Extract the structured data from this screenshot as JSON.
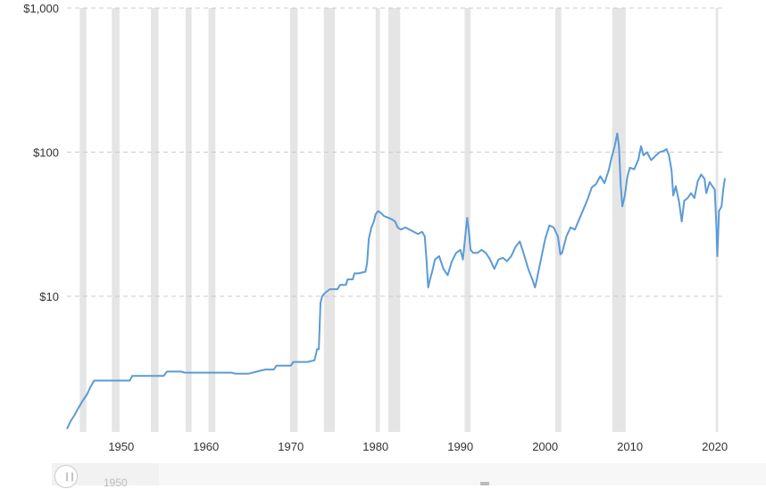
{
  "chart_data": {
    "type": "line",
    "title": "",
    "xlabel": "",
    "ylabel": "",
    "y_scale": "log",
    "ylim": [
      1.2,
      1000
    ],
    "xlim": [
      1943.6,
      2021.2
    ],
    "y_ticks": [
      {
        "value": 10,
        "label": "$10"
      },
      {
        "value": 100,
        "label": "$100"
      },
      {
        "value": 1000,
        "label": "$1,000"
      }
    ],
    "x_ticks": [
      1950,
      1960,
      1970,
      1980,
      1990,
      2000,
      2010,
      2020
    ],
    "grid": true,
    "series_color": "#5b9bd5",
    "recession_color": "#e5e5e5",
    "recessions": [
      [
        1945.1,
        1945.9
      ],
      [
        1948.9,
        1949.8
      ],
      [
        1953.5,
        1954.4
      ],
      [
        1957.6,
        1958.3
      ],
      [
        1960.3,
        1961.1
      ],
      [
        1969.9,
        1970.8
      ],
      [
        1973.9,
        1975.2
      ],
      [
        1980.0,
        1980.5
      ],
      [
        1981.5,
        1982.9
      ],
      [
        1990.5,
        1991.2
      ],
      [
        2001.2,
        2001.9
      ],
      [
        2007.9,
        2009.5
      ],
      [
        2020.1,
        2020.4
      ]
    ],
    "series": [
      {
        "values": [
          [
            1943.6,
            1.2
          ],
          [
            1944.0,
            1.35
          ],
          [
            1944.5,
            1.5
          ],
          [
            1945.0,
            1.7
          ],
          [
            1945.5,
            1.9
          ],
          [
            1946.0,
            2.1
          ],
          [
            1946.3,
            2.3
          ],
          [
            1946.8,
            2.6
          ],
          [
            1948.0,
            2.6
          ],
          [
            1950.0,
            2.6
          ],
          [
            1951.0,
            2.6
          ],
          [
            1951.3,
            2.8
          ],
          [
            1954.0,
            2.8
          ],
          [
            1955.0,
            2.8
          ],
          [
            1955.4,
            3.0
          ],
          [
            1957.0,
            3.0
          ],
          [
            1957.5,
            2.95
          ],
          [
            1960.0,
            2.95
          ],
          [
            1963.0,
            2.95
          ],
          [
            1963.5,
            2.9
          ],
          [
            1965.0,
            2.9
          ],
          [
            1966.0,
            3.0
          ],
          [
            1967.0,
            3.1
          ],
          [
            1968.0,
            3.1
          ],
          [
            1968.3,
            3.3
          ],
          [
            1970.0,
            3.3
          ],
          [
            1970.3,
            3.5
          ],
          [
            1971.0,
            3.5
          ],
          [
            1972.0,
            3.5
          ],
          [
            1972.8,
            3.6
          ],
          [
            1973.1,
            4.3
          ],
          [
            1973.3,
            4.3
          ],
          [
            1973.5,
            9.0
          ],
          [
            1973.7,
            10.0
          ],
          [
            1974.0,
            10.5
          ],
          [
            1974.6,
            11.2
          ],
          [
            1975.5,
            11.2
          ],
          [
            1975.8,
            12.0
          ],
          [
            1976.5,
            12.0
          ],
          [
            1976.7,
            13.1
          ],
          [
            1977.3,
            13.1
          ],
          [
            1977.5,
            14.4
          ],
          [
            1978.0,
            14.4
          ],
          [
            1978.8,
            14.8
          ],
          [
            1979.0,
            17.0
          ],
          [
            1979.2,
            25.0
          ],
          [
            1979.5,
            30.0
          ],
          [
            1979.8,
            33.0
          ],
          [
            1980.0,
            37.0
          ],
          [
            1980.3,
            39.0
          ],
          [
            1980.6,
            38.0
          ],
          [
            1981.0,
            36.0
          ],
          [
            1981.5,
            35.0
          ],
          [
            1982.0,
            34.0
          ],
          [
            1982.3,
            33.0
          ],
          [
            1982.6,
            30.0
          ],
          [
            1983.0,
            29.0
          ],
          [
            1983.5,
            30.0
          ],
          [
            1984.0,
            29.0
          ],
          [
            1984.5,
            28.0
          ],
          [
            1985.0,
            27.0
          ],
          [
            1985.5,
            28.0
          ],
          [
            1985.8,
            26.0
          ],
          [
            1986.0,
            18.0
          ],
          [
            1986.2,
            11.5
          ],
          [
            1986.4,
            13.0
          ],
          [
            1986.7,
            15.0
          ],
          [
            1987.0,
            18.0
          ],
          [
            1987.5,
            19.0
          ],
          [
            1988.0,
            15.5
          ],
          [
            1988.5,
            14.0
          ],
          [
            1989.0,
            17.5
          ],
          [
            1989.5,
            20.0
          ],
          [
            1990.0,
            21.0
          ],
          [
            1990.3,
            18.0
          ],
          [
            1990.6,
            27.0
          ],
          [
            1990.8,
            35.0
          ],
          [
            1991.0,
            28.0
          ],
          [
            1991.2,
            21.0
          ],
          [
            1991.5,
            20.0
          ],
          [
            1992.0,
            20.0
          ],
          [
            1992.5,
            21.0
          ],
          [
            1993.0,
            20.0
          ],
          [
            1993.5,
            18.0
          ],
          [
            1994.0,
            15.5
          ],
          [
            1994.5,
            18.0
          ],
          [
            1995.0,
            18.5
          ],
          [
            1995.5,
            17.5
          ],
          [
            1996.0,
            19.0
          ],
          [
            1996.5,
            22.0
          ],
          [
            1997.0,
            24.0
          ],
          [
            1997.5,
            19.5
          ],
          [
            1998.0,
            15.5
          ],
          [
            1998.5,
            13.0
          ],
          [
            1998.8,
            11.5
          ],
          [
            1999.0,
            13.0
          ],
          [
            1999.5,
            18.0
          ],
          [
            2000.0,
            25.0
          ],
          [
            2000.5,
            31.0
          ],
          [
            2001.0,
            30.0
          ],
          [
            2001.5,
            26.0
          ],
          [
            2001.8,
            19.5
          ],
          [
            2002.0,
            20.0
          ],
          [
            2002.5,
            26.0
          ],
          [
            2003.0,
            30.0
          ],
          [
            2003.5,
            29.0
          ],
          [
            2004.0,
            34.0
          ],
          [
            2004.5,
            40.0
          ],
          [
            2005.0,
            47.0
          ],
          [
            2005.5,
            57.0
          ],
          [
            2006.0,
            60.0
          ],
          [
            2006.5,
            68.0
          ],
          [
            2007.0,
            61.0
          ],
          [
            2007.5,
            75.0
          ],
          [
            2007.8,
            90.0
          ],
          [
            2008.2,
            110.0
          ],
          [
            2008.5,
            135.0
          ],
          [
            2008.7,
            110.0
          ],
          [
            2008.9,
            60.0
          ],
          [
            2009.1,
            42.0
          ],
          [
            2009.4,
            50.0
          ],
          [
            2009.7,
            68.0
          ],
          [
            2010.0,
            78.0
          ],
          [
            2010.5,
            76.0
          ],
          [
            2011.0,
            89.0
          ],
          [
            2011.3,
            110.0
          ],
          [
            2011.6,
            95.0
          ],
          [
            2012.0,
            100.0
          ],
          [
            2012.5,
            88.0
          ],
          [
            2013.0,
            94.0
          ],
          [
            2013.5,
            100.0
          ],
          [
            2014.0,
            102.0
          ],
          [
            2014.3,
            105.0
          ],
          [
            2014.6,
            95.0
          ],
          [
            2014.9,
            75.0
          ],
          [
            2015.1,
            50.0
          ],
          [
            2015.4,
            58.0
          ],
          [
            2015.8,
            45.0
          ],
          [
            2016.1,
            33.0
          ],
          [
            2016.4,
            46.0
          ],
          [
            2016.8,
            48.0
          ],
          [
            2017.2,
            52.0
          ],
          [
            2017.6,
            48.0
          ],
          [
            2018.0,
            63.0
          ],
          [
            2018.4,
            70.0
          ],
          [
            2018.8,
            65.0
          ],
          [
            2019.0,
            52.0
          ],
          [
            2019.4,
            62.0
          ],
          [
            2019.8,
            57.0
          ],
          [
            2020.0,
            55.0
          ],
          [
            2020.2,
            30.0
          ],
          [
            2020.3,
            19.0
          ],
          [
            2020.5,
            39.0
          ],
          [
            2020.8,
            42.0
          ],
          [
            2021.0,
            55.0
          ],
          [
            2021.2,
            66.0
          ]
        ]
      }
    ]
  },
  "navigator": {
    "label": "1950",
    "handle_glyph": "||"
  }
}
